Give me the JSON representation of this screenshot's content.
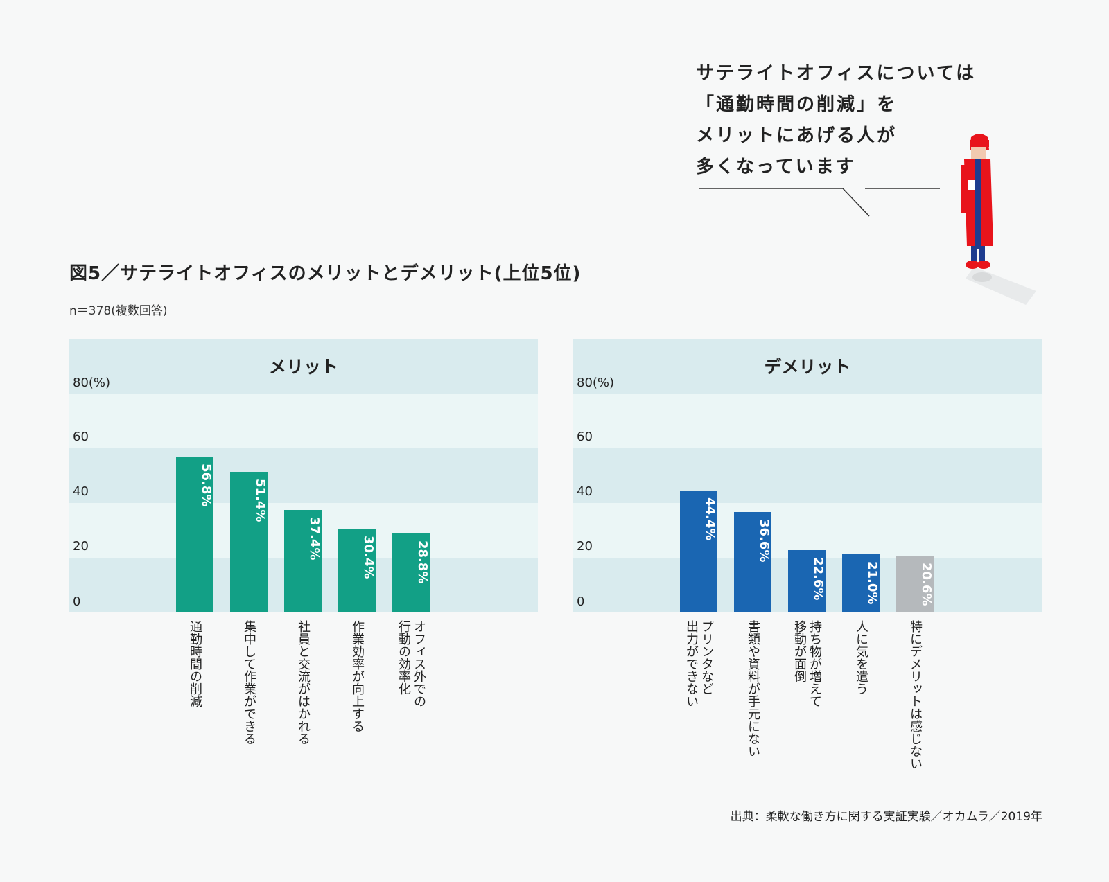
{
  "callout": {
    "lines": [
      "サテライトオフィスについては",
      "「通勤時間の削減」を",
      "メリットにあげる人が",
      "多くなっています"
    ]
  },
  "figure_title": "図5／サテライトオフィスのメリットとデメリット(上位5位)",
  "sample_note": "n＝378(複数回答)",
  "source": "出典：柔軟な働き方に関する実証実験／オカムラ／2019年",
  "colors": {
    "merit_bar": "#12a086",
    "demerit_bar": "#1a66b2",
    "neutral_bar": "#b5b9bc",
    "band_dark": "#d9ebee",
    "band_light": "#ebf6f6"
  },
  "chart_data": [
    {
      "type": "bar",
      "title": "メリット",
      "ylabel": "80(%)",
      "yticks": [
        "80(%)",
        "60",
        "40",
        "20",
        "0"
      ],
      "ylim": [
        0,
        80
      ],
      "categories": [
        "通勤時間の削減",
        "集中して作業ができる",
        "社員と交流がはかれる",
        "作業効率が向上する",
        "オフィス外での\n行動の効率化"
      ],
      "values": [
        56.8,
        51.4,
        37.4,
        30.4,
        28.8
      ],
      "data_labels": [
        "56.8%",
        "51.4%",
        "37.4%",
        "30.4%",
        "28.8%"
      ]
    },
    {
      "type": "bar",
      "title": "デメリット",
      "ylabel": "80(%)",
      "yticks": [
        "80(%)",
        "60",
        "40",
        "20",
        "0"
      ],
      "ylim": [
        0,
        80
      ],
      "categories": [
        "プリンタなど\n出力ができない",
        "書類や資料が手元にない",
        "持ち物が増えて\n移動が面倒",
        "人に気を遣う",
        "特にデメリットは感じない"
      ],
      "values": [
        44.4,
        36.6,
        22.6,
        21.0,
        20.6
      ],
      "data_labels": [
        "44.4%",
        "36.6%",
        "22.6%",
        "21.0%",
        "20.6%"
      ]
    }
  ]
}
